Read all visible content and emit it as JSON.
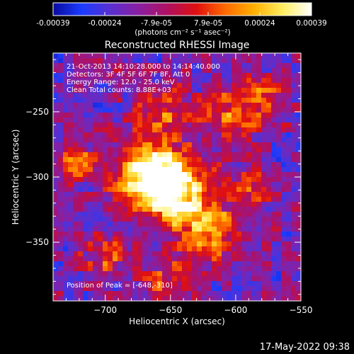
{
  "colorbar": {
    "ticks": [
      "-0.00039",
      "-0.00024",
      "-7.9e-05",
      "7.9e-05",
      "0.00024",
      "0.00039"
    ],
    "unit_label": "(photons cm⁻² s⁻¹ asec⁻²)",
    "colors": [
      "#0a0aa0",
      "#1a3cff",
      "#5a2fd0",
      "#8a1fa0",
      "#b01060",
      "#e01010",
      "#ff6a00",
      "#ffb000",
      "#ffee60",
      "#ffffff"
    ]
  },
  "chart_data": {
    "type": "heatmap",
    "title": "Reconstructed RHESSI Image",
    "xlabel": "Heliocentric X (arcsec)",
    "ylabel": "Heliocentric Y (arcsec)",
    "xlim": [
      -740,
      -550
    ],
    "ylim": [
      -395,
      -205
    ],
    "x_ticks": [
      -700,
      -650,
      -600,
      -550
    ],
    "y_ticks": [
      -250,
      -300,
      -350
    ],
    "x_tick_labels": [
      "−700",
      "−650",
      "−600",
      "−550"
    ],
    "y_tick_labels": [
      "−250",
      "−300",
      "−350"
    ],
    "annotations": [
      "21-Oct-2013 14:10:28.000 to 14:14:40.000",
      "Detectors: 3F 4F 5F 6F 7F 8F, Att 0",
      "Energy Range: 12.0 - 25.0 keV",
      "Clean     Total counts: 8.88E+03"
    ],
    "peak_label": "Position of Peak = [-648,-310]",
    "peak": [
      -648,
      -310
    ],
    "sources": [
      {
        "x": -648,
        "y": -310,
        "amp": 1.0,
        "sigma": 18
      },
      {
        "x": -670,
        "y": -295,
        "amp": 0.8,
        "sigma": 16
      },
      {
        "x": -620,
        "y": -342,
        "amp": 0.65,
        "sigma": 14
      },
      {
        "x": -725,
        "y": -290,
        "amp": 0.55,
        "sigma": 10
      },
      {
        "x": -700,
        "y": -360,
        "amp": 0.35,
        "sigma": 12
      },
      {
        "x": -600,
        "y": -250,
        "amp": 0.45,
        "sigma": 16
      },
      {
        "x": -575,
        "y": -240,
        "amp": 0.35,
        "sigma": 10
      },
      {
        "x": -655,
        "y": -250,
        "amp": 0.4,
        "sigma": 14
      },
      {
        "x": -590,
        "y": -310,
        "amp": 0.35,
        "sigma": 12
      },
      {
        "x": -650,
        "y": -380,
        "amp": 0.35,
        "sigma": 14
      }
    ]
  },
  "footer": {
    "timestamp": "17-May-2022 09:38"
  }
}
